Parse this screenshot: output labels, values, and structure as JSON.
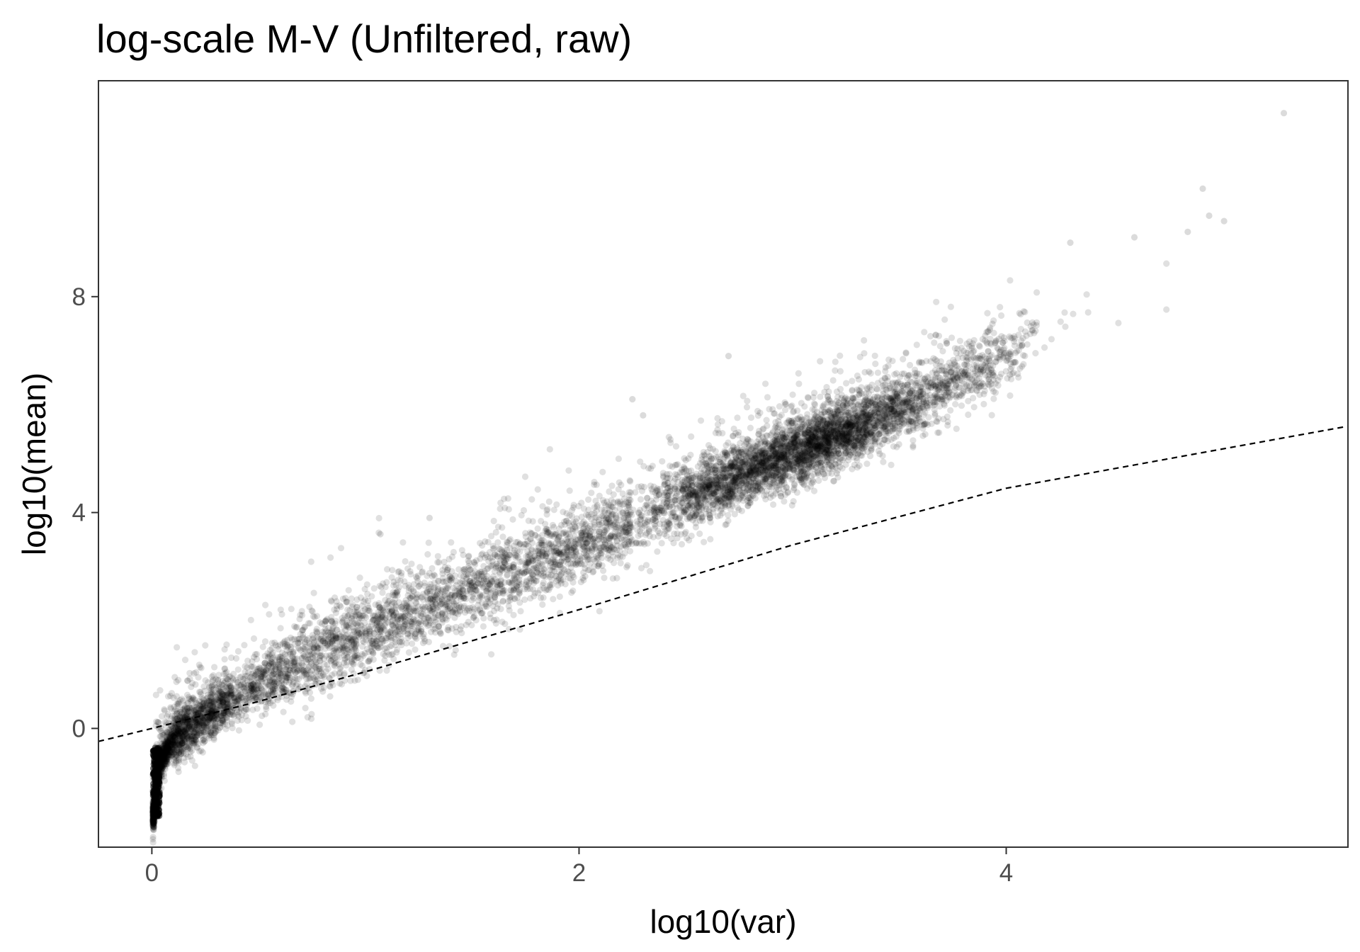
{
  "chart_data": {
    "type": "scatter",
    "title": "log-scale M-V (Unfiltered, raw)",
    "xlabel": "log10(var)",
    "ylabel": "log10(mean)",
    "xlim": [
      -0.25,
      5.6
    ],
    "ylim": [
      -2.2,
      12.0
    ],
    "x_ticks": [
      0,
      2,
      4
    ],
    "x_tick_labels": [
      "0",
      "2",
      "4"
    ],
    "y_ticks": [
      0,
      4,
      8
    ],
    "y_tick_labels": [
      "0",
      "4",
      "8"
    ],
    "grid": false,
    "legend": "none",
    "point_color": "#000000",
    "point_alpha": 0.12,
    "reference_line": {
      "style": "dashed",
      "color": "#000000",
      "points": [
        [
          -0.25,
          -0.24
        ],
        [
          0.0,
          0.0
        ],
        [
          0.5,
          0.5
        ],
        [
          1.0,
          1.05
        ],
        [
          2.0,
          2.2
        ],
        [
          3.0,
          3.4
        ],
        [
          4.0,
          4.45
        ],
        [
          5.6,
          5.6
        ]
      ]
    },
    "trend": {
      "x": [
        0.01,
        0.02,
        0.05,
        0.1,
        0.2,
        0.3,
        0.5,
        0.7,
        1.0,
        1.5,
        2.0,
        2.5,
        3.0,
        3.5,
        4.0
      ],
      "y": [
        -1.6,
        -1.0,
        -0.55,
        -0.2,
        0.1,
        0.35,
        0.8,
        1.2,
        1.8,
        2.6,
        3.4,
        4.25,
        5.1,
        5.9,
        6.9
      ]
    },
    "highlighted_points": [
      {
        "x": 5.3,
        "y": 11.4
      },
      {
        "x": 4.92,
        "y": 10.0
      },
      {
        "x": 4.95,
        "y": 9.5
      },
      {
        "x": 5.02,
        "y": 9.4
      },
      {
        "x": 4.85,
        "y": 9.2
      },
      {
        "x": 4.6,
        "y": 9.1
      },
      {
        "x": 4.3,
        "y": 9.0
      },
      {
        "x": 2.7,
        "y": 6.9
      },
      {
        "x": 2.25,
        "y": 6.1
      },
      {
        "x": 2.3,
        "y": 5.8
      },
      {
        "x": 1.3,
        "y": 3.9
      },
      {
        "x": 1.07,
        "y": 3.6
      }
    ]
  }
}
